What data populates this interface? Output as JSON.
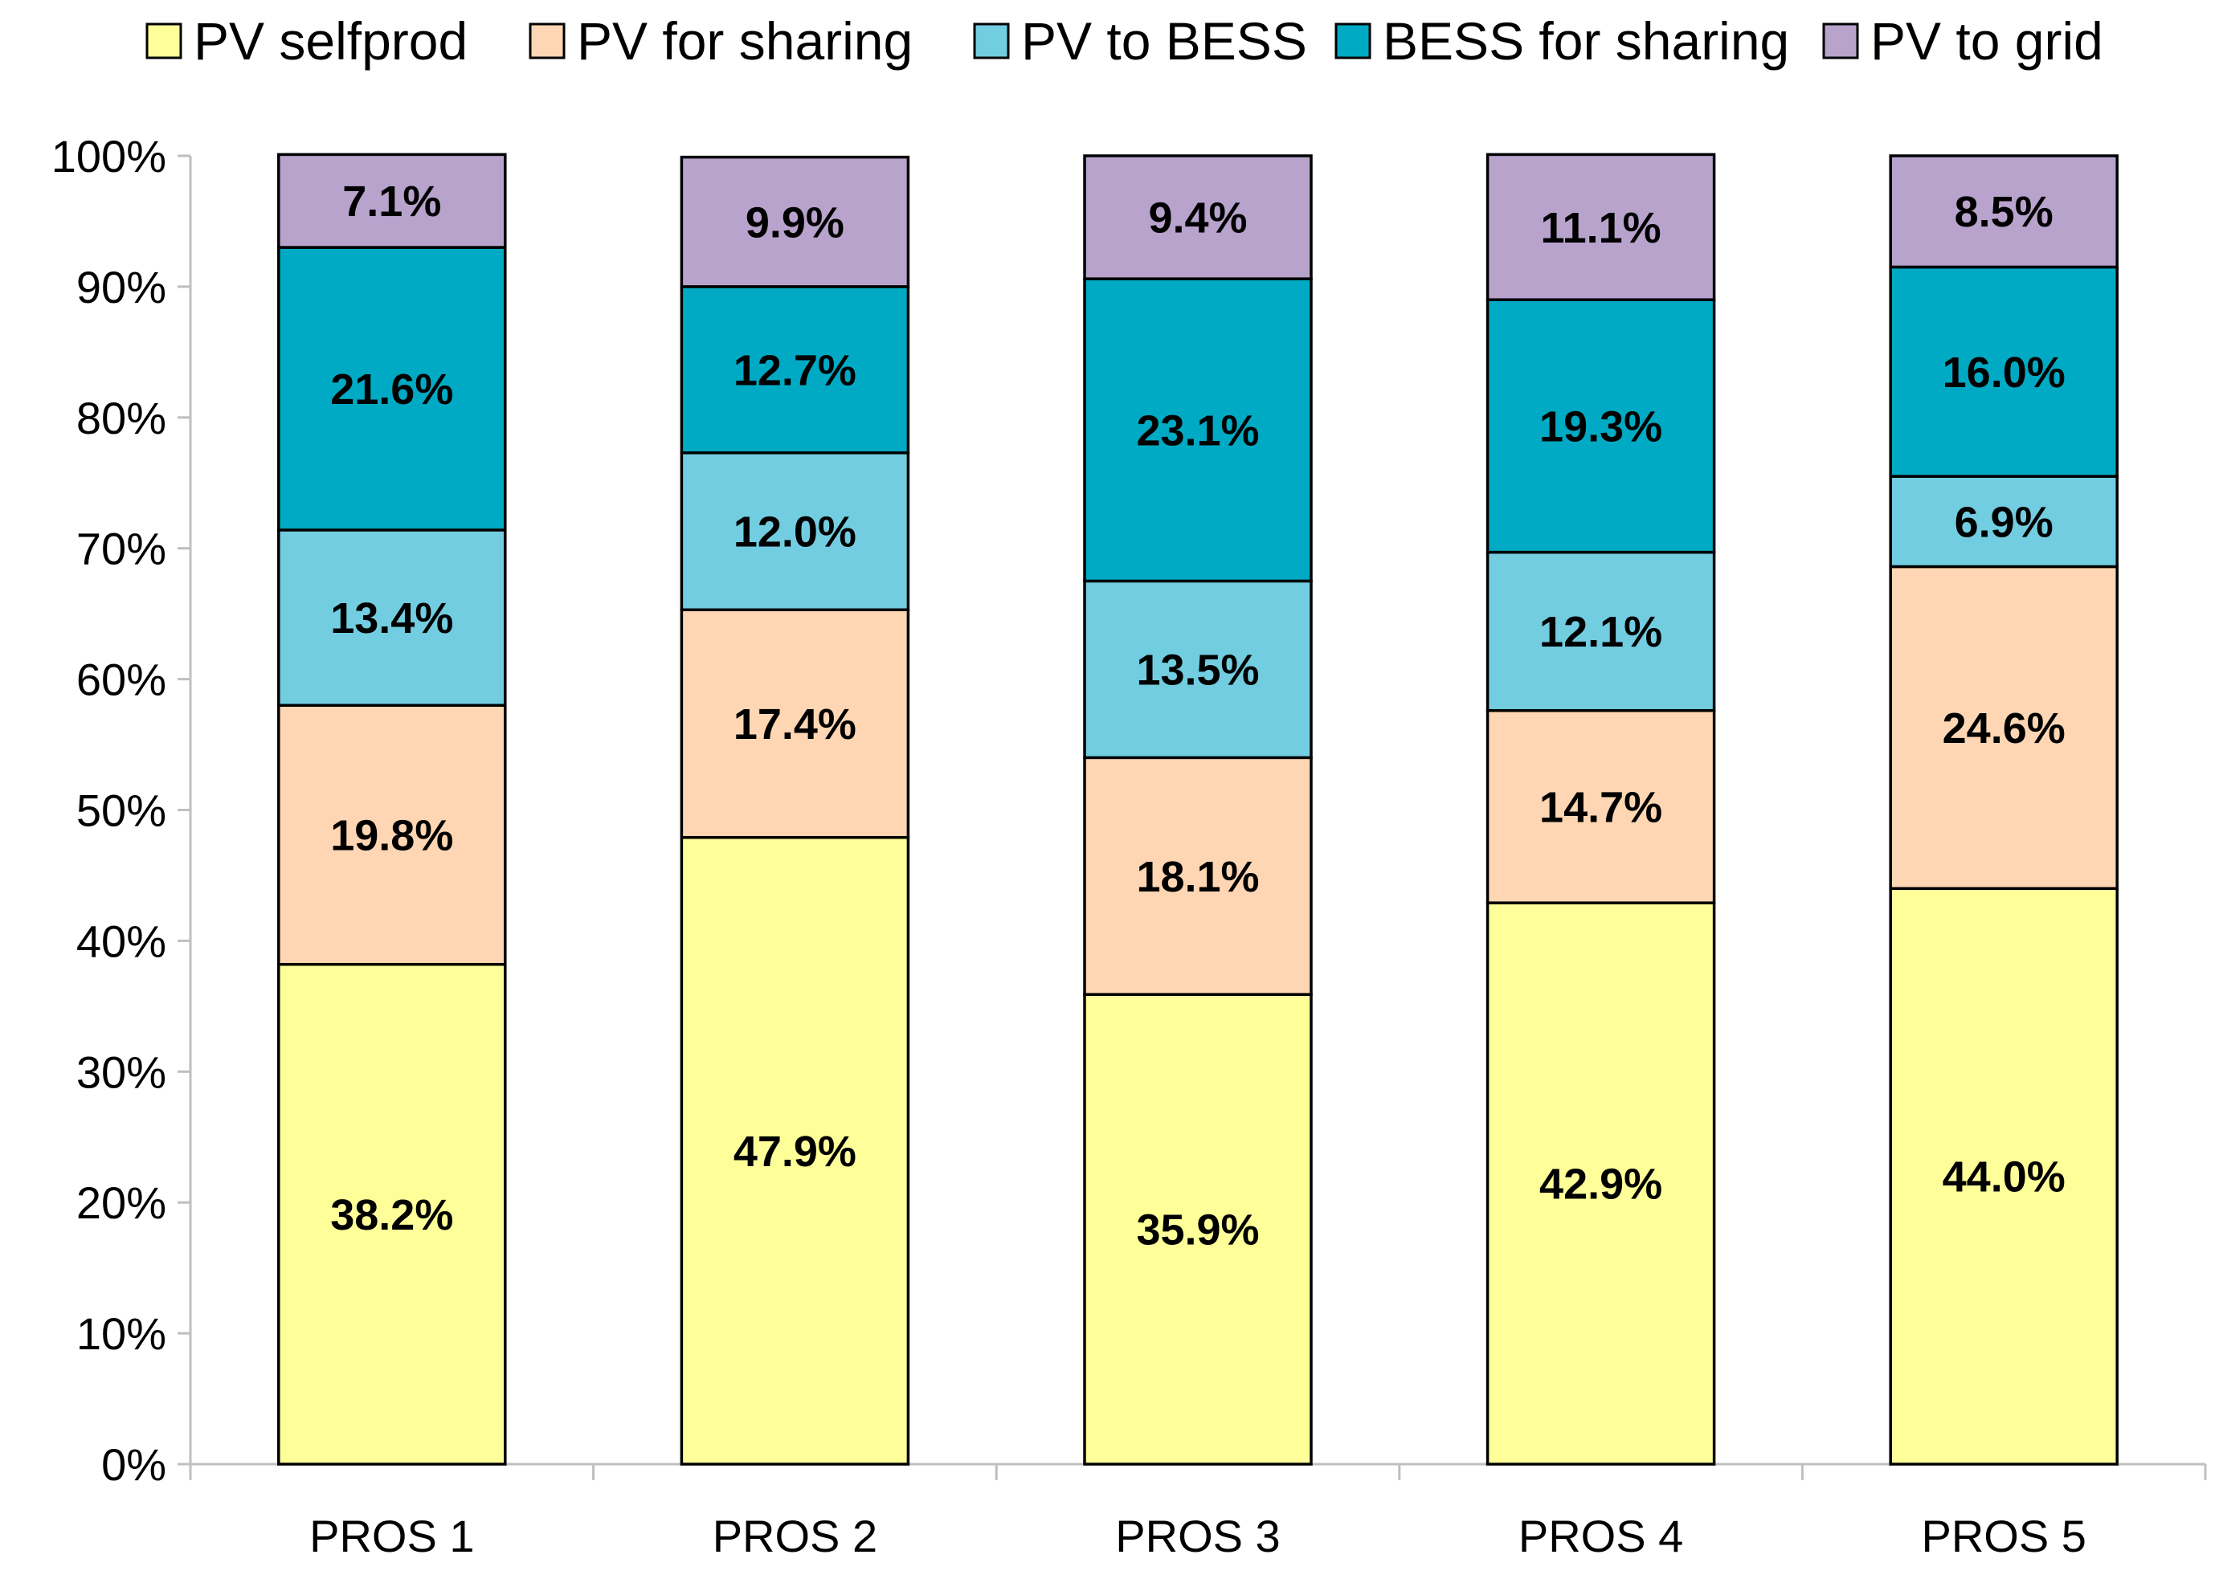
{
  "chart_data": {
    "type": "bar",
    "stacked": true,
    "title": "",
    "xlabel": "",
    "ylabel": "",
    "ylim": [
      0,
      100
    ],
    "categories": [
      "PROS 1",
      "PROS 2",
      "PROS 3",
      "PROS 4",
      "PROS 5"
    ],
    "y_ticks": [
      "0%",
      "10%",
      "20%",
      "30%",
      "40%",
      "50%",
      "60%",
      "70%",
      "80%",
      "90%",
      "100%"
    ],
    "legend_position": "top",
    "series": [
      {
        "name": "PV selfprod",
        "color": "#FFFF99",
        "values": [
          38.2,
          47.9,
          35.9,
          42.9,
          44.0
        ],
        "labels": [
          "38.2%",
          "47.9%",
          "35.9%",
          "42.9%",
          "44.0%"
        ]
      },
      {
        "name": "PV for sharing",
        "color": "#FFD6B3",
        "values": [
          19.8,
          17.4,
          18.1,
          14.7,
          24.6
        ],
        "labels": [
          "19.8%",
          "17.4%",
          "18.1%",
          "14.7%",
          "24.6%"
        ]
      },
      {
        "name": "PV to BESS",
        "color": "#72CDE0",
        "values": [
          13.4,
          12.0,
          13.5,
          12.1,
          6.9
        ],
        "labels": [
          "13.4%",
          "12.0%",
          "13.5%",
          "12.1%",
          "6.9%"
        ]
      },
      {
        "name": "BESS for sharing",
        "color": "#00AAC4",
        "values": [
          21.6,
          12.7,
          23.1,
          19.3,
          16.0
        ],
        "labels": [
          "21.6%",
          "12.7%",
          "23.1%",
          "19.3%",
          "16.0%"
        ]
      },
      {
        "name": "PV to grid",
        "color": "#B7A3CC",
        "values": [
          7.1,
          9.9,
          9.4,
          11.1,
          8.5
        ],
        "labels": [
          "7.1%",
          "9.9%",
          "9.4%",
          "11.1%",
          "8.5%"
        ]
      }
    ]
  }
}
